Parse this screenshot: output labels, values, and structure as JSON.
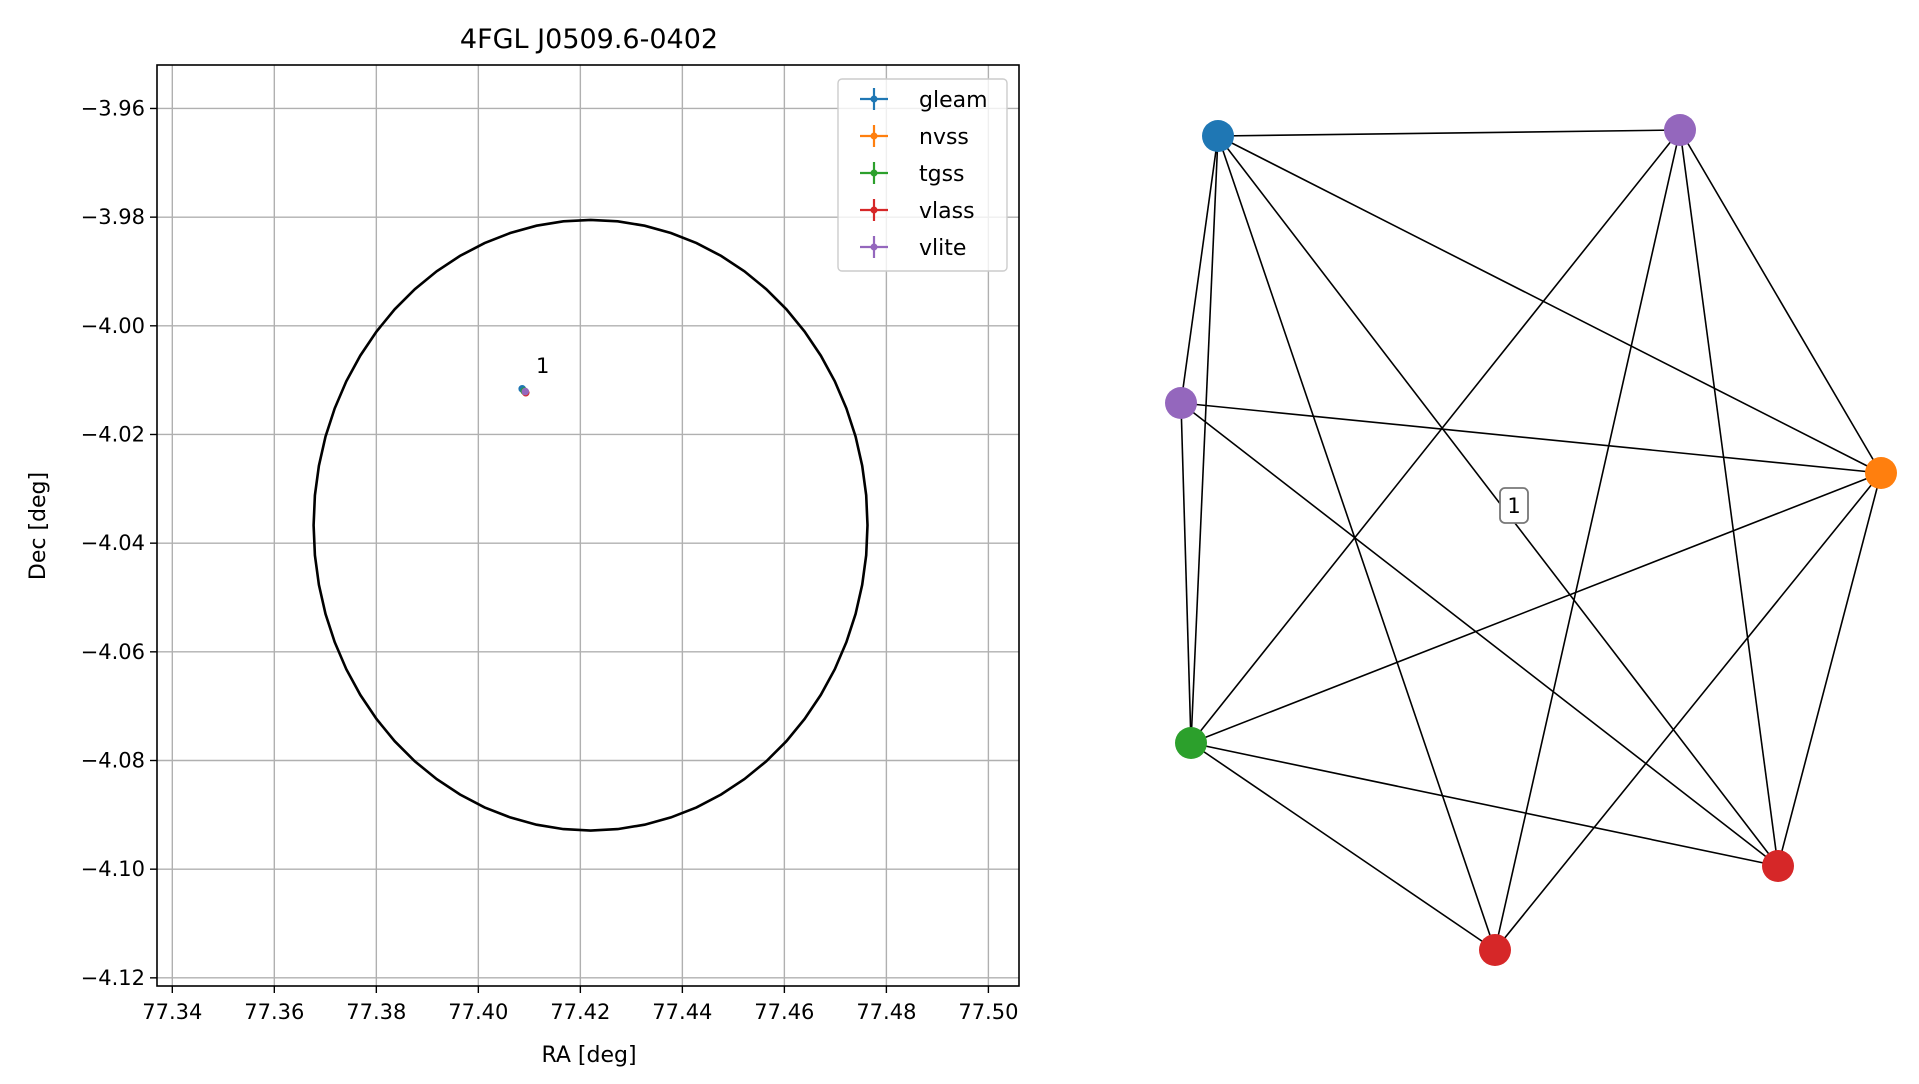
{
  "chart_data": [
    {
      "type": "scatter",
      "title": "4FGL J0509.6-0402",
      "xlabel": "RA [deg]",
      "ylabel": "Dec [deg]",
      "xlim": [
        77.337,
        77.506
      ],
      "ylim": [
        -4.1215,
        -3.952
      ],
      "xticks": [
        77.34,
        77.36,
        77.38,
        77.4,
        77.42,
        77.44,
        77.46,
        77.48,
        77.5
      ],
      "xtick_labels": [
        "77.34",
        "77.36",
        "77.38",
        "77.40",
        "77.42",
        "77.44",
        "77.46",
        "77.48",
        "77.50"
      ],
      "yticks": [
        -3.96,
        -3.98,
        -4.0,
        -4.02,
        -4.04,
        -4.06,
        -4.08,
        -4.1,
        -4.12
      ],
      "ytick_labels": [
        "−3.96",
        "−3.98",
        "−4.00",
        "−4.02",
        "−4.04",
        "−4.06",
        "−4.08",
        "−4.10",
        "−4.12"
      ],
      "grid": true,
      "legend_position": "top-right",
      "series": [
        {
          "name": "gleam",
          "color": "#1f77b4",
          "points": [
            {
              "x": 77.4086,
              "y": -4.0116
            }
          ]
        },
        {
          "name": "nvss",
          "color": "#ff7f0e",
          "points": [
            {
              "x": 77.4091,
              "y": -4.0121
            }
          ]
        },
        {
          "name": "tgss",
          "color": "#2ca02c",
          "points": [
            {
              "x": 77.409,
              "y": -4.012
            }
          ]
        },
        {
          "name": "vlass",
          "color": "#d62728",
          "points": [
            {
              "x": 77.4093,
              "y": -4.0123
            }
          ]
        },
        {
          "name": "vlite",
          "color": "#9467bd",
          "points": [
            {
              "x": 77.4092,
              "y": -4.0121
            }
          ]
        }
      ],
      "ellipse": {
        "center_x": 77.422,
        "center_y": -4.0367,
        "semi_x": 0.0543,
        "semi_y": 0.0562,
        "color": "#000000"
      },
      "annotations": [
        {
          "text": "1",
          "x": 77.4113,
          "y": -4.0087
        }
      ]
    },
    {
      "type": "network",
      "cluster_label": "1",
      "nodes": [
        {
          "id": "a",
          "color": "#1f77b4"
        },
        {
          "id": "b",
          "color": "#9467bd"
        },
        {
          "id": "c",
          "color": "#9467bd"
        },
        {
          "id": "d",
          "color": "#ff7f0e"
        },
        {
          "id": "e",
          "color": "#2ca02c"
        },
        {
          "id": "f",
          "color": "#d62728"
        },
        {
          "id": "g",
          "color": "#d62728"
        }
      ],
      "edges": [
        [
          "a",
          "b"
        ],
        [
          "a",
          "c"
        ],
        [
          "a",
          "d"
        ],
        [
          "a",
          "e"
        ],
        [
          "a",
          "f"
        ],
        [
          "a",
          "g"
        ],
        [
          "b",
          "e"
        ],
        [
          "b",
          "f"
        ],
        [
          "b",
          "g"
        ],
        [
          "b",
          "d"
        ],
        [
          "c",
          "d"
        ],
        [
          "c",
          "e"
        ],
        [
          "c",
          "g"
        ],
        [
          "d",
          "e"
        ],
        [
          "d",
          "f"
        ],
        [
          "d",
          "g"
        ],
        [
          "e",
          "f"
        ],
        [
          "e",
          "g"
        ]
      ]
    }
  ]
}
